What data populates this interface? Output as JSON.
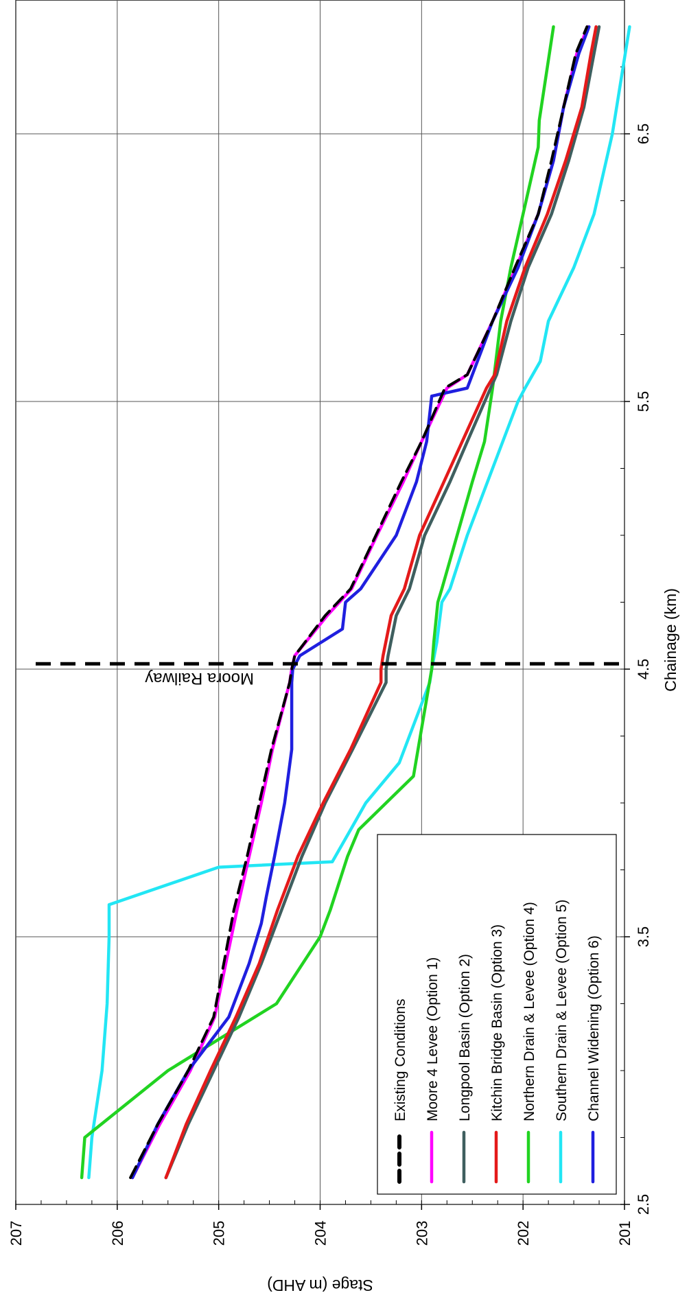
{
  "chart_data": {
    "type": "line",
    "orientation": "rotated-90-clockwise",
    "xlabel": "Chainage (km)",
    "ylabel": "Stage (m AHD)",
    "xlim": [
      2.5,
      7.0
    ],
    "ylim": [
      201,
      207
    ],
    "x_ticks": [
      "2.5",
      "3.5",
      "4.5",
      "5.5",
      "6.5"
    ],
    "y_ticks": [
      "201",
      "202",
      "203",
      "204",
      "205",
      "206",
      "207"
    ],
    "grid": true,
    "legend_position": "lower-center",
    "annotations": [
      {
        "id": "railway",
        "text": "Moora Railway",
        "x": 4.52
      }
    ],
    "series": [
      {
        "name": "Existing Conditions",
        "color": "#000000",
        "style": "dashed",
        "x": [
          2.6,
          2.8,
          3.0,
          3.2,
          3.4,
          3.6,
          3.8,
          4.0,
          4.2,
          4.45,
          4.5,
          4.55,
          4.7,
          4.8,
          5.0,
          5.2,
          5.35,
          5.55,
          5.6,
          5.8,
          6.0,
          6.2,
          6.4,
          6.6,
          6.8,
          6.9
        ],
        "y": [
          205.87,
          205.6,
          205.3,
          205.05,
          204.95,
          204.85,
          204.72,
          204.6,
          204.48,
          204.3,
          204.28,
          204.25,
          203.95,
          203.7,
          203.45,
          203.2,
          203.0,
          202.77,
          202.55,
          202.3,
          202.08,
          201.85,
          201.72,
          201.6,
          201.48,
          201.37
        ]
      },
      {
        "name": "Moore 4 Levee (Option 1)",
        "color": "#ff00ff",
        "style": "solid",
        "x": [
          2.6,
          2.8,
          3.0,
          3.2,
          3.4,
          3.6,
          3.8,
          4.0,
          4.2,
          4.45,
          4.5,
          4.55,
          4.7,
          4.8,
          5.0,
          5.2,
          5.35,
          5.55,
          5.6,
          5.8,
          6.0,
          6.2,
          6.4,
          6.6,
          6.8,
          6.9
        ],
        "y": [
          205.85,
          205.58,
          205.28,
          205.04,
          204.93,
          204.82,
          204.7,
          204.58,
          204.47,
          204.3,
          204.28,
          204.25,
          203.93,
          203.69,
          203.44,
          203.18,
          203.0,
          202.75,
          202.55,
          202.3,
          202.07,
          201.85,
          201.7,
          201.6,
          201.47,
          201.36
        ]
      },
      {
        "name": "Longpool Basin (Option 2)",
        "color": "#3f5f5f",
        "style": "solid",
        "x": [
          2.6,
          2.8,
          3.0,
          3.2,
          3.4,
          3.6,
          3.8,
          4.0,
          4.2,
          4.45,
          4.5,
          4.55,
          4.7,
          4.8,
          5.0,
          5.2,
          5.35,
          5.55,
          5.6,
          5.8,
          6.0,
          6.2,
          6.4,
          6.6,
          6.8,
          6.9
        ],
        "y": [
          205.52,
          205.3,
          205.05,
          204.8,
          204.58,
          204.38,
          204.18,
          203.95,
          203.68,
          203.35,
          203.35,
          203.33,
          203.25,
          203.12,
          202.97,
          202.72,
          202.55,
          202.32,
          202.26,
          202.12,
          201.95,
          201.72,
          201.55,
          201.4,
          201.3,
          201.25
        ]
      },
      {
        "name": "Kitchin Bridge Basin (Option 3)",
        "color": "#e41a1a",
        "style": "solid",
        "x": [
          2.6,
          2.8,
          3.0,
          3.2,
          3.4,
          3.6,
          3.8,
          4.0,
          4.2,
          4.45,
          4.5,
          4.55,
          4.7,
          4.8,
          5.0,
          5.2,
          5.35,
          5.55,
          5.6,
          5.8,
          6.0,
          6.2,
          6.4,
          6.6,
          6.8,
          6.9
        ],
        "y": [
          205.52,
          205.32,
          205.08,
          204.83,
          204.6,
          204.42,
          204.22,
          203.97,
          203.7,
          203.4,
          203.4,
          203.38,
          203.3,
          203.17,
          203.02,
          202.78,
          202.6,
          202.36,
          202.28,
          202.16,
          201.98,
          201.76,
          201.58,
          201.42,
          201.33,
          201.28
        ]
      },
      {
        "name": "Northern Drain & Levee (Option 4)",
        "color": "#21d321",
        "style": "solid",
        "x": [
          2.6,
          2.75,
          3.0,
          3.25,
          3.5,
          3.6,
          3.8,
          3.9,
          4.1,
          4.5,
          4.6,
          4.75,
          4.8,
          5.0,
          5.2,
          5.35,
          5.55,
          5.8,
          6.0,
          6.2,
          6.45,
          6.55,
          6.9
        ],
        "y": [
          206.35,
          206.32,
          205.5,
          204.43,
          204.0,
          203.9,
          203.73,
          203.62,
          203.08,
          202.9,
          202.88,
          202.84,
          202.8,
          202.65,
          202.5,
          202.38,
          202.3,
          202.22,
          202.12,
          202.0,
          201.85,
          201.84,
          201.7
        ]
      },
      {
        "name": "Southern Drain & Levee (Option 5)",
        "color": "#22e6f4",
        "style": "solid",
        "x": [
          2.6,
          2.75,
          3.0,
          3.25,
          3.5,
          3.62,
          3.76,
          3.78,
          3.9,
          4.0,
          4.15,
          4.45,
          4.5,
          4.6,
          4.75,
          4.8,
          5.0,
          5.3,
          5.5,
          5.55,
          5.65,
          5.8,
          6.0,
          6.2,
          6.5,
          6.9
        ],
        "y": [
          206.28,
          206.25,
          206.15,
          206.1,
          206.08,
          206.08,
          205.0,
          203.88,
          203.7,
          203.55,
          203.22,
          202.92,
          202.9,
          202.85,
          202.8,
          202.72,
          202.55,
          202.25,
          202.05,
          201.98,
          201.83,
          201.75,
          201.5,
          201.3,
          201.12,
          200.95
        ]
      },
      {
        "name": "Channel Widening (Option 6)",
        "color": "#1f1fdf",
        "style": "solid",
        "x": [
          2.6,
          2.8,
          3.0,
          3.2,
          3.4,
          3.55,
          3.65,
          3.8,
          4.0,
          4.2,
          4.45,
          4.5,
          4.55,
          4.65,
          4.75,
          4.8,
          5.0,
          5.2,
          5.35,
          5.52,
          5.55,
          5.6,
          5.8,
          6.0,
          6.2,
          6.4,
          6.6,
          6.8,
          6.9
        ],
        "y": [
          205.85,
          205.6,
          205.3,
          204.9,
          204.7,
          204.58,
          204.53,
          204.45,
          204.35,
          204.28,
          204.28,
          204.27,
          204.2,
          203.78,
          203.75,
          203.6,
          203.25,
          203.05,
          202.95,
          202.9,
          202.55,
          202.5,
          202.3,
          202.05,
          201.85,
          201.7,
          201.6,
          201.45,
          201.35
        ]
      }
    ]
  }
}
